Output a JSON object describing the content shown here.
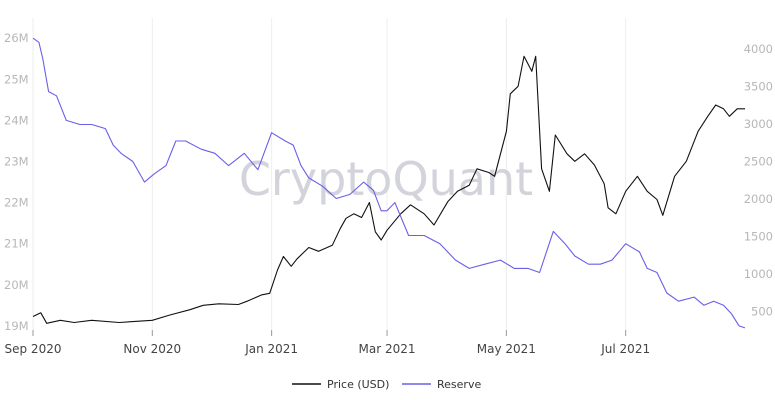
{
  "watermark": "CryptoQuant",
  "colors": {
    "price": "#111111",
    "reserve": "#6a5fe8",
    "grid": "#eeeeee",
    "tick": "#b7b7b7"
  },
  "chart_data": {
    "type": "line",
    "title": "",
    "x_ticks": [
      "Sep 2020",
      "Nov 2020",
      "Jan 2021",
      "Mar 2021",
      "May 2021",
      "Jul 2021"
    ],
    "xlim": [
      "2020-09-01",
      "2021-08-31"
    ],
    "y_left": {
      "ticks": [
        "19M",
        "20M",
        "21M",
        "22M",
        "23M",
        "24M",
        "25M",
        "26M"
      ],
      "lim": [
        18.9,
        26.2
      ]
    },
    "y_right": {
      "ticks": [
        "500",
        "1000",
        "1500",
        "2000",
        "2500",
        "3000",
        "3500",
        "4000"
      ],
      "lim": [
        250,
        4250
      ]
    },
    "legend": {
      "position": "bottom-center"
    },
    "series": [
      {
        "name": "Price (USD)",
        "axis": "right",
        "x": [
          "2020-09-01",
          "2020-09-05",
          "2020-09-08",
          "2020-09-15",
          "2020-09-22",
          "2020-10-01",
          "2020-10-15",
          "2020-11-01",
          "2020-11-10",
          "2020-11-20",
          "2020-11-27",
          "2020-12-05",
          "2020-12-15",
          "2020-12-20",
          "2020-12-27",
          "2020-12-31",
          "2021-01-04",
          "2021-01-07",
          "2021-01-11",
          "2021-01-14",
          "2021-01-20",
          "2021-01-25",
          "2021-02-01",
          "2021-02-05",
          "2021-02-08",
          "2021-02-12",
          "2021-02-16",
          "2021-02-20",
          "2021-02-23",
          "2021-02-26",
          "2021-03-01",
          "2021-03-08",
          "2021-03-13",
          "2021-03-20",
          "2021-03-25",
          "2021-04-01",
          "2021-04-06",
          "2021-04-12",
          "2021-04-16",
          "2021-04-22",
          "2021-04-25",
          "2021-05-01",
          "2021-05-03",
          "2021-05-07",
          "2021-05-10",
          "2021-05-12",
          "2021-05-14",
          "2021-05-16",
          "2021-05-19",
          "2021-05-23",
          "2021-05-26",
          "2021-06-01",
          "2021-06-05",
          "2021-06-10",
          "2021-06-15",
          "2021-06-20",
          "2021-06-22",
          "2021-06-26",
          "2021-07-01",
          "2021-07-07",
          "2021-07-12",
          "2021-07-17",
          "2021-07-20",
          "2021-07-26",
          "2021-08-01",
          "2021-08-07",
          "2021-08-12",
          "2021-08-16",
          "2021-08-20",
          "2021-08-23",
          "2021-08-27",
          "2021-08-31"
        ],
        "values": [
          430,
          480,
          340,
          380,
          350,
          380,
          350,
          380,
          450,
          520,
          580,
          600,
          590,
          640,
          720,
          740,
          1050,
          1230,
          1100,
          1200,
          1350,
          1300,
          1380,
          1600,
          1740,
          1800,
          1750,
          1950,
          1560,
          1450,
          1580,
          1800,
          1920,
          1800,
          1650,
          1960,
          2100,
          2180,
          2400,
          2350,
          2300,
          2900,
          3400,
          3500,
          3900,
          3800,
          3700,
          3900,
          2400,
          2100,
          2850,
          2600,
          2500,
          2600,
          2450,
          2200,
          1880,
          1800,
          2100,
          2300,
          2100,
          1990,
          1780,
          2300,
          2500,
          2900,
          3100,
          3250,
          3200,
          3100,
          3200,
          3200
        ]
      },
      {
        "name": "Reserve",
        "axis": "left",
        "x": [
          "2020-09-01",
          "2020-09-04",
          "2020-09-06",
          "2020-09-09",
          "2020-09-13",
          "2020-09-18",
          "2020-09-25",
          "2020-10-01",
          "2020-10-08",
          "2020-10-12",
          "2020-10-16",
          "2020-10-22",
          "2020-10-28",
          "2020-11-02",
          "2020-11-08",
          "2020-11-13",
          "2020-11-18",
          "2020-11-26",
          "2020-12-03",
          "2020-12-10",
          "2020-12-18",
          "2020-12-25",
          "2021-01-01",
          "2021-01-08",
          "2021-01-12",
          "2021-01-16",
          "2021-01-20",
          "2021-01-27",
          "2021-02-03",
          "2021-02-10",
          "2021-02-17",
          "2021-02-22",
          "2021-02-26",
          "2021-03-01",
          "2021-03-05",
          "2021-03-12",
          "2021-03-20",
          "2021-03-28",
          "2021-04-05",
          "2021-04-12",
          "2021-04-20",
          "2021-04-28",
          "2021-05-05",
          "2021-05-12",
          "2021-05-18",
          "2021-05-25",
          "2021-05-31",
          "2021-06-05",
          "2021-06-12",
          "2021-06-18",
          "2021-06-24",
          "2021-07-01",
          "2021-07-08",
          "2021-07-12",
          "2021-07-17",
          "2021-07-22",
          "2021-07-28",
          "2021-08-05",
          "2021-08-10",
          "2021-08-15",
          "2021-08-20",
          "2021-08-24",
          "2021-08-28",
          "2021-08-31"
        ],
        "values": [
          26.0,
          25.9,
          25.5,
          24.7,
          24.6,
          24.0,
          23.9,
          23.9,
          23.8,
          23.4,
          23.2,
          23.0,
          22.5,
          22.7,
          22.9,
          23.5,
          23.5,
          23.3,
          23.2,
          22.9,
          23.2,
          22.8,
          23.7,
          23.5,
          23.4,
          22.9,
          22.6,
          22.4,
          22.1,
          22.2,
          22.5,
          22.3,
          21.8,
          21.8,
          22.0,
          21.2,
          21.2,
          21.0,
          20.6,
          20.4,
          20.5,
          20.6,
          20.4,
          20.4,
          20.3,
          21.3,
          21.0,
          20.7,
          20.5,
          20.5,
          20.6,
          21.0,
          20.8,
          20.4,
          20.3,
          19.8,
          19.6,
          19.7,
          19.5,
          19.6,
          19.5,
          19.3,
          19.0,
          18.95
        ]
      }
    ]
  }
}
